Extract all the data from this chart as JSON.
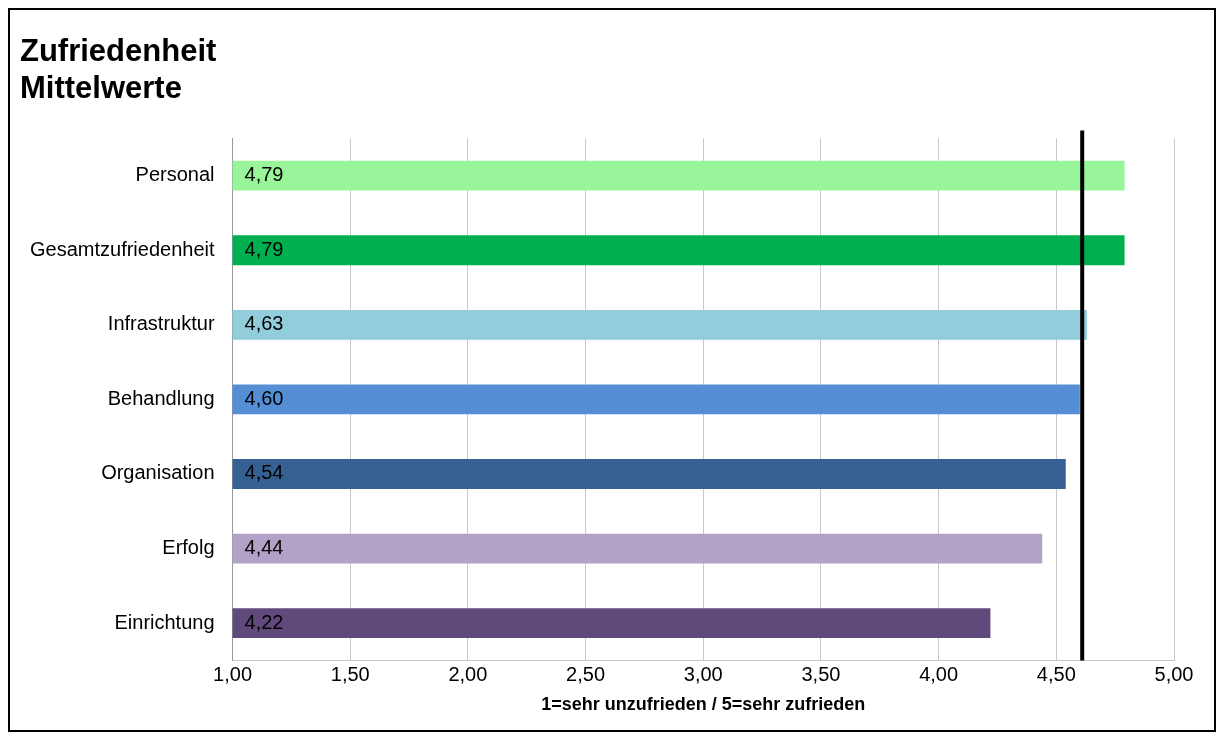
{
  "chart_data": {
    "type": "bar",
    "orientation": "horizontal",
    "title": "Zufriedenheit\nMittelwerte",
    "xlabel": "1=sehr unzufrieden / 5=sehr zufrieden",
    "categories": [
      "Personal",
      "Gesamtzufriedenheit",
      "Infrastruktur",
      "Behandlung",
      "Organisation",
      "Erfolg",
      "Einrichtung"
    ],
    "values": [
      4.79,
      4.79,
      4.63,
      4.6,
      4.54,
      4.44,
      4.22
    ],
    "value_labels": [
      "4,79",
      "4,79",
      "4,63",
      "4,60",
      "4,54",
      "4,44",
      "4,22"
    ],
    "colors": [
      "#99f59a",
      "#00b050",
      "#92cddc",
      "#558ed5",
      "#376092",
      "#b3a2c7",
      "#604a7b"
    ],
    "xlim": [
      1,
      5
    ],
    "xticks": [
      {
        "value": 1,
        "label": "1,00"
      },
      {
        "value": 1.5,
        "label": "1,50"
      },
      {
        "value": 2,
        "label": "2,00"
      },
      {
        "value": 2.5,
        "label": "2,50"
      },
      {
        "value": 3,
        "label": "3,00"
      },
      {
        "value": 3.5,
        "label": "3,50"
      },
      {
        "value": 4,
        "label": "4,00"
      },
      {
        "value": 4.5,
        "label": "4,50"
      },
      {
        "value": 5,
        "label": "5,00"
      }
    ],
    "ref_lines": [
      {
        "axis": "x",
        "value": 4.61,
        "color": "#000000"
      }
    ],
    "grid": "x",
    "legend": false
  }
}
